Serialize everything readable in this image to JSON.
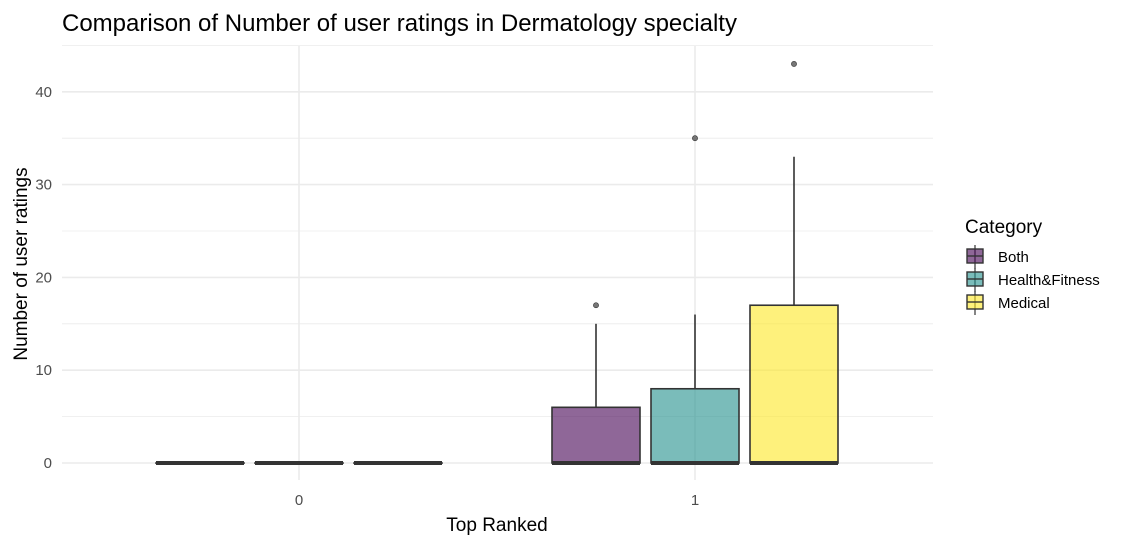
{
  "chart_data": {
    "type": "boxplot",
    "title": "Comparison of Number of user ratings in Dermatology specialty",
    "xlabel": "Top Ranked",
    "ylabel": "Number of user ratings",
    "categories": [
      "0",
      "1"
    ],
    "ylim": [
      -2,
      45
    ],
    "yticks": [
      0,
      10,
      20,
      30,
      40
    ],
    "grid": true,
    "legend": {
      "title": "Category",
      "position": "right"
    },
    "series": [
      {
        "name": "Both",
        "color": "#440154",
        "boxes": [
          {
            "category": "0",
            "min": 0,
            "q1": 0,
            "median": 0,
            "q3": 0,
            "max": 0,
            "outliers": []
          },
          {
            "category": "1",
            "min": 0,
            "q1": 0,
            "median": 0,
            "q3": 6,
            "max": 15,
            "outliers": [
              17
            ]
          }
        ]
      },
      {
        "name": "Health&Fitness",
        "color": "#21908C",
        "boxes": [
          {
            "category": "0",
            "min": 0,
            "q1": 0,
            "median": 0,
            "q3": 0,
            "max": 0,
            "outliers": []
          },
          {
            "category": "1",
            "min": 0,
            "q1": 0,
            "median": 0,
            "q3": 8,
            "max": 16,
            "outliers": [
              35
            ]
          }
        ]
      },
      {
        "name": "Medical",
        "color": "#FDE725",
        "boxes": [
          {
            "category": "0",
            "min": 0,
            "q1": 0,
            "median": 0,
            "q3": 0,
            "max": 0,
            "outliers": []
          },
          {
            "category": "1",
            "min": 0,
            "q1": 0,
            "median": 0,
            "q3": 17,
            "max": 33,
            "outliers": [
              43
            ]
          }
        ]
      }
    ]
  }
}
